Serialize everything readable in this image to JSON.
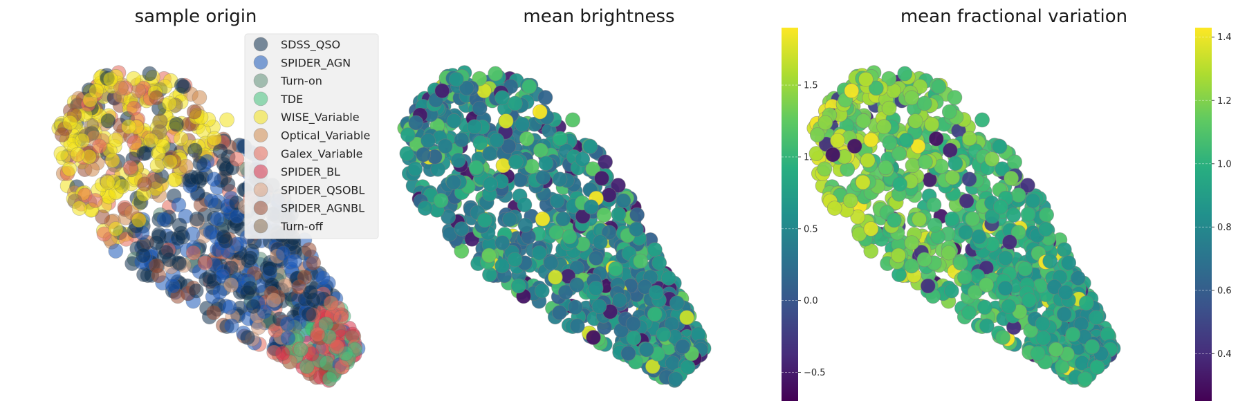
{
  "chart_data": [
    {
      "type": "scatter",
      "title": "sample origin",
      "xlabel": "",
      "ylabel": "",
      "legend": {
        "placement": "top-right"
      },
      "categories": [
        "SDSS_QSO",
        "SPIDER_AGN",
        "Turn-on",
        "TDE",
        "WISE_Variable",
        "Optical_Variable",
        "Galex_Variable",
        "SPIDER_BL",
        "SPIDER_QSOBL",
        "SPIDER_AGNBL",
        "Turn-off"
      ],
      "colors": [
        "#0f2f4f",
        "#1a57b8",
        "#5f8f78",
        "#43c17c",
        "#f2e21a",
        "#d08a4e",
        "#e56a5a",
        "#d9344d",
        "#d9a080",
        "#9a4f35",
        "#8a7050"
      ],
      "marker_alpha": 0.55
    },
    {
      "type": "scatter",
      "title": "mean brightness",
      "xlabel": "",
      "ylabel": "",
      "colormap": "viridis",
      "colorbar": {
        "range": [
          -0.7,
          1.9
        ],
        "ticks": [
          -0.5,
          0.0,
          0.5,
          1.0,
          1.5
        ],
        "tick_labels": [
          "−0.5",
          "0.0",
          "0.5",
          "1.0",
          "1.5"
        ]
      }
    },
    {
      "type": "scatter",
      "title": "mean fractional variation",
      "xlabel": "",
      "ylabel": "",
      "colormap": "viridis",
      "colorbar": {
        "range": [
          0.25,
          1.43
        ],
        "ticks": [
          0.4,
          0.6,
          0.8,
          1.0,
          1.2,
          1.4
        ],
        "tick_labels": [
          "0.4",
          "0.6",
          "0.8",
          "1.0",
          "1.2",
          "1.4"
        ]
      }
    }
  ]
}
